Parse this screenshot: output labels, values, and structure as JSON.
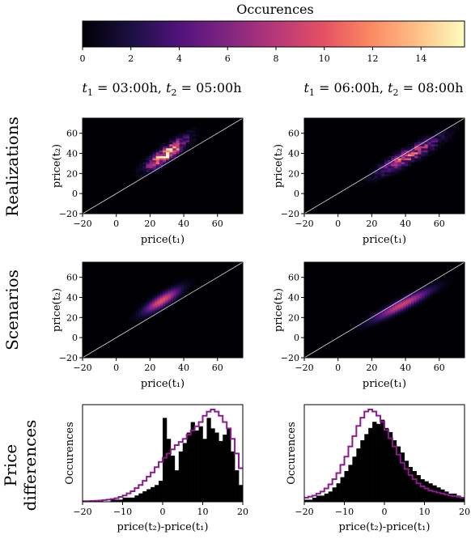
{
  "colorbar": {
    "label": "Occurences",
    "ticks": [
      "0",
      "2",
      "4",
      "6",
      "8",
      "10",
      "12",
      "14"
    ],
    "range": [
      0,
      15.8
    ],
    "colormap": "magma"
  },
  "columns": [
    {
      "t1": "03:00h",
      "t2": "05:00h"
    },
    {
      "t1": "06:00h",
      "t2": "08:00h"
    }
  ],
  "rows": {
    "realizations": "Realizations",
    "scenarios": "Scenarios",
    "price_differences_line1": "Price",
    "price_differences_line2": "differences"
  },
  "labels": {
    "price_t1": "price(t₁)",
    "price_t2": "price(t₂)",
    "price_diff": "price(t₂)-price(t₁)",
    "occurences": "Occurences"
  },
  "chart_data": [
    {
      "type": "heatmap",
      "panel": "realizations-col1",
      "xlabel": "price(t1)",
      "ylabel": "price(t2)",
      "xlim": [
        -20,
        75
      ],
      "ylim": [
        -20,
        75
      ],
      "xticks": [
        -20,
        0,
        20,
        40,
        60
      ],
      "yticks": [
        -20,
        0,
        20,
        40,
        60
      ],
      "diagonal": true,
      "center": [
        30,
        40
      ],
      "sd_x": 7,
      "sd_y": 9,
      "corr": 0.85,
      "peak_count": 15
    },
    {
      "type": "heatmap",
      "panel": "realizations-col2",
      "xlabel": "price(t1)",
      "ylabel": "price(t2)",
      "xlim": [
        -20,
        75
      ],
      "ylim": [
        -20,
        75
      ],
      "xticks": [
        -20,
        0,
        20,
        40,
        60
      ],
      "yticks": [
        -20,
        0,
        20,
        40,
        60
      ],
      "diagonal": true,
      "center": [
        42,
        38
      ],
      "sd_x": 11,
      "sd_y": 11,
      "corr": 0.9,
      "peak_count": 9
    },
    {
      "type": "heatmap",
      "panel": "scenarios-col1",
      "xlabel": "price(t1)",
      "ylabel": "price(t2)",
      "xlim": [
        -20,
        75
      ],
      "ylim": [
        -20,
        75
      ],
      "xticks": [
        -20,
        0,
        20,
        40,
        60
      ],
      "yticks": [
        -20,
        0,
        20,
        40,
        60
      ],
      "diagonal": true,
      "center": [
        27,
        37
      ],
      "sd_x": 7,
      "sd_y": 8,
      "corr": 0.85,
      "peak_count": 10
    },
    {
      "type": "heatmap",
      "panel": "scenarios-col2",
      "xlabel": "price(t1)",
      "ylabel": "price(t2)",
      "xlim": [
        -20,
        75
      ],
      "ylim": [
        -20,
        75
      ],
      "xticks": [
        -20,
        0,
        20,
        40,
        60
      ],
      "yticks": [
        -20,
        0,
        20,
        40,
        60
      ],
      "diagonal": true,
      "center": [
        38,
        33
      ],
      "sd_x": 11,
      "sd_y": 10,
      "corr": 0.93,
      "peak_count": 9
    },
    {
      "type": "bar",
      "panel": "price-differences-col1",
      "xlabel": "price(t2)-price(t1)",
      "ylabel": "Occurences",
      "xlim": [
        -20,
        20
      ],
      "xticks": [
        -20,
        -10,
        0,
        10,
        20
      ],
      "bin_width": 1,
      "bins_start": -20,
      "histogram": [
        0,
        0,
        0,
        0,
        0,
        0,
        0,
        1,
        1,
        1,
        2,
        2,
        2,
        3,
        4,
        5,
        6,
        7,
        8,
        10,
        40,
        30,
        22,
        15,
        24,
        28,
        33,
        38,
        34,
        36,
        30,
        40,
        35,
        33,
        29,
        32,
        35,
        24,
        15,
        8
      ],
      "curve": [
        0.3,
        0.3,
        0.4,
        0.5,
        0.6,
        0.8,
        1,
        1.3,
        1.7,
        2.3,
        3,
        4,
        5,
        6.5,
        8,
        10,
        12,
        14,
        16.5,
        19,
        21,
        23,
        25,
        27,
        28.5,
        30,
        32,
        34,
        36,
        38,
        41,
        43,
        44,
        43,
        41,
        38,
        35,
        30,
        23,
        16
      ]
    },
    {
      "type": "bar",
      "panel": "price-differences-col2",
      "xlabel": "price(t2)-price(t1)",
      "ylabel": "Occurences",
      "xlim": [
        -20,
        20
      ],
      "xticks": [
        -20,
        -10,
        0,
        10,
        20
      ],
      "bin_width": 1,
      "bins_start": -20,
      "histogram": [
        1,
        1,
        2,
        3,
        3,
        4,
        5,
        7,
        9,
        12,
        15,
        18,
        22,
        26,
        30,
        33,
        36,
        39,
        38,
        40,
        36,
        34,
        30,
        27,
        24,
        20,
        17,
        15,
        13,
        11,
        10,
        9,
        8,
        7,
        6,
        5,
        4,
        4,
        3,
        2
      ],
      "curve": [
        2,
        2.5,
        3,
        4,
        5,
        6.5,
        8.5,
        11,
        14,
        18,
        22,
        27,
        32,
        37,
        41,
        44,
        45,
        44,
        42,
        39,
        35,
        31,
        27,
        23,
        19,
        16,
        13,
        11,
        9,
        7.5,
        6.5,
        5.5,
        5,
        4.5,
        4,
        3.5,
        3,
        2.7,
        2.4,
        2
      ]
    }
  ]
}
